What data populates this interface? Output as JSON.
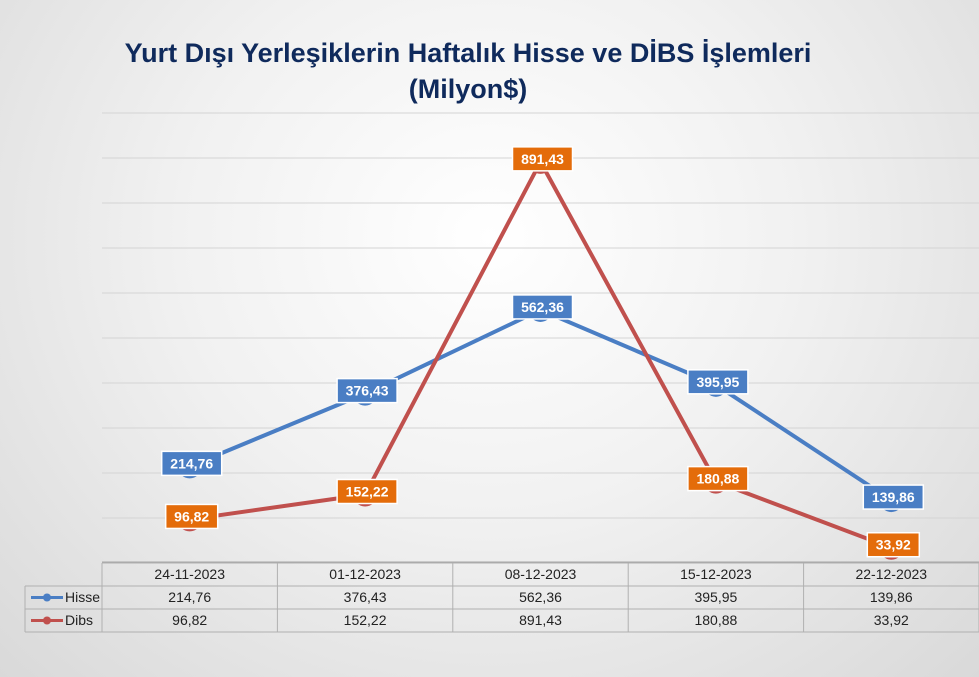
{
  "chart_data": {
    "type": "line",
    "title": "Yurt Dışı Yerleşiklerin Haftalık Hisse ve DİBS İşlemleri",
    "subtitle": "(Milyon$)",
    "categories": [
      "24-11-2023",
      "01-12-2023",
      "08-12-2023",
      "15-12-2023",
      "22-12-2023"
    ],
    "series": [
      {
        "name": "Hisse",
        "color": "#4a7ec4",
        "label_bg": "#4a7ec4",
        "values": [
          214.76,
          376.43,
          562.36,
          395.95,
          139.86
        ],
        "labels": [
          "214,76",
          "376,43",
          "562,36",
          "395,95",
          "139,86"
        ]
      },
      {
        "name": "Dibs",
        "color": "#c0504d",
        "label_bg": "#e46c0a",
        "values": [
          96.82,
          152.22,
          891.43,
          180.88,
          33.92
        ],
        "labels": [
          "96,82",
          "152,22",
          "891,43",
          "180,88",
          "33,92"
        ]
      }
    ],
    "ylim": [
      0,
      1000
    ],
    "grid": true,
    "legend": "data-table",
    "data_table": true
  }
}
